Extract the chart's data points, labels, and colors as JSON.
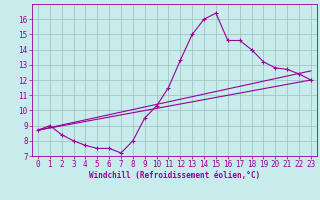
{
  "bg_color": "#c8ecec",
  "line_color": "#990099",
  "grid_color": "#9bbfbf",
  "xlabel": "Windchill (Refroidissement éolien,°C)",
  "xlabel_fontsize": 5.5,
  "tick_fontsize": 5.5,
  "ylim": [
    7,
    17
  ],
  "xlim": [
    -0.5,
    23.5
  ],
  "yticks": [
    7,
    8,
    9,
    10,
    11,
    12,
    13,
    14,
    15,
    16
  ],
  "xticks": [
    0,
    1,
    2,
    3,
    4,
    5,
    6,
    7,
    8,
    9,
    10,
    11,
    12,
    13,
    14,
    15,
    16,
    17,
    18,
    19,
    20,
    21,
    22,
    23
  ],
  "windchill_x": [
    0,
    1,
    2,
    3,
    4,
    5,
    6,
    7,
    8,
    9,
    10,
    11,
    12,
    13,
    14,
    15,
    16,
    17,
    18,
    19,
    20,
    21,
    22,
    23
  ],
  "windchill_y": [
    8.7,
    9.0,
    8.4,
    8.0,
    7.7,
    7.5,
    7.5,
    7.2,
    8.0,
    9.5,
    10.3,
    11.5,
    13.3,
    15.0,
    16.0,
    16.4,
    14.6,
    14.6,
    14.0,
    13.2,
    12.8,
    12.7,
    12.4,
    12.0
  ],
  "line1_x": [
    0,
    23
  ],
  "line1_y": [
    8.7,
    12.0
  ],
  "line2_x": [
    0,
    23
  ],
  "line2_y": [
    8.7,
    12.6
  ]
}
